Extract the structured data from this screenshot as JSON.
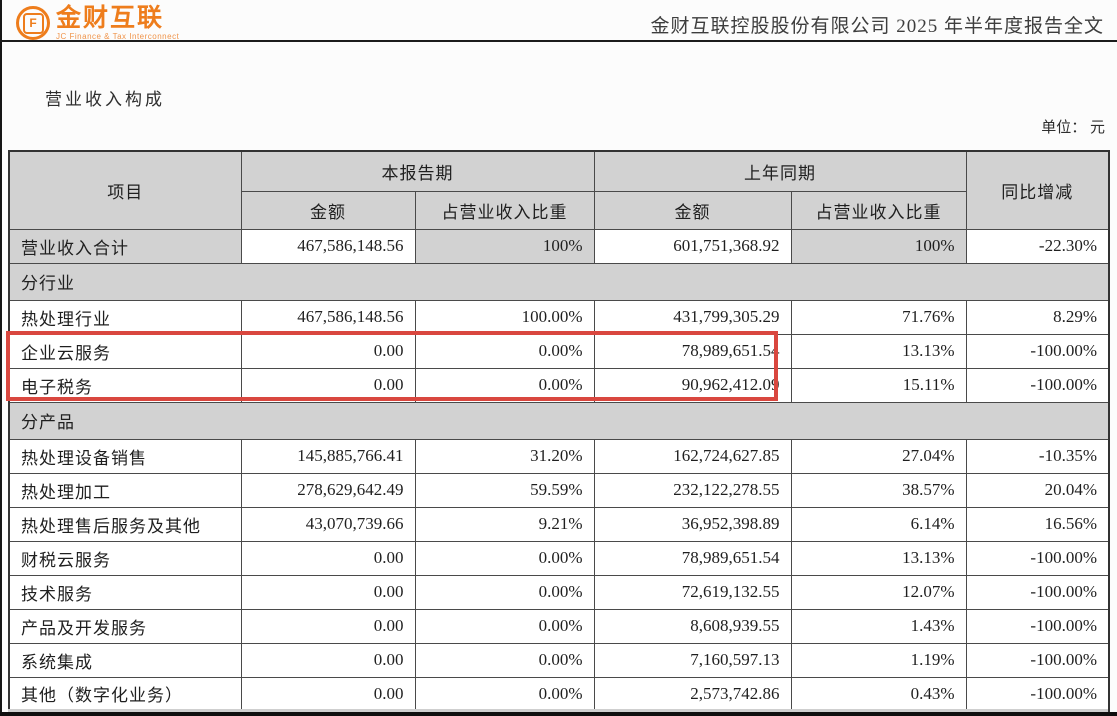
{
  "brand": {
    "name": "金财互联",
    "tagline": "JC Finance & Tax Interconnect",
    "icon_letter": "F",
    "color": "#ee7d1c"
  },
  "header": {
    "doc_title": "金财互联控股股份有限公司 2025 年半年度报告全文"
  },
  "section_title": "营业收入构成",
  "unit_label": "单位： 元",
  "colors": {
    "accent_orange": "#ee7d1c",
    "highlight_red": "#d9473f",
    "header_gray": "#d2d2d2"
  },
  "annotation": {
    "highlight_rows": [
      "企业云服务",
      "电子税务"
    ],
    "shape": "red-rectangle"
  },
  "table": {
    "col_headers": {
      "item": "项目",
      "current_period": "本报告期",
      "prior_period": "上年同期",
      "amount": "金额",
      "pct": "占营业收入比重",
      "yoy": "同比增减"
    },
    "rows": [
      {
        "type": "data",
        "cells": [
          "营业收入合计",
          "467,586,148.56",
          "100%",
          "601,751,368.92",
          "100%",
          "-22.30%"
        ],
        "shade": [
          true,
          false,
          true,
          false,
          true,
          false
        ]
      },
      {
        "type": "section",
        "label": "分行业"
      },
      {
        "type": "data",
        "cells": [
          "热处理行业",
          "467,586,148.56",
          "100.00%",
          "431,799,305.29",
          "71.76%",
          "8.29%"
        ]
      },
      {
        "type": "data",
        "cells": [
          "企业云服务",
          "0.00",
          "0.00%",
          "78,989,651.54",
          "13.13%",
          "-100.00%"
        ],
        "highlighted": true
      },
      {
        "type": "data",
        "cells": [
          "电子税务",
          "0.00",
          "0.00%",
          "90,962,412.09",
          "15.11%",
          "-100.00%"
        ],
        "highlighted": true
      },
      {
        "type": "section",
        "label": "分产品"
      },
      {
        "type": "data",
        "cells": [
          "热处理设备销售",
          "145,885,766.41",
          "31.20%",
          "162,724,627.85",
          "27.04%",
          "-10.35%"
        ]
      },
      {
        "type": "data",
        "cells": [
          "热处理加工",
          "278,629,642.49",
          "59.59%",
          "232,122,278.55",
          "38.57%",
          "20.04%"
        ]
      },
      {
        "type": "data",
        "cells": [
          "热处理售后服务及其他",
          "43,070,739.66",
          "9.21%",
          "36,952,398.89",
          "6.14%",
          "16.56%"
        ]
      },
      {
        "type": "data",
        "cells": [
          "财税云服务",
          "0.00",
          "0.00%",
          "78,989,651.54",
          "13.13%",
          "-100.00%"
        ]
      },
      {
        "type": "data",
        "cells": [
          "技术服务",
          "0.00",
          "0.00%",
          "72,619,132.55",
          "12.07%",
          "-100.00%"
        ]
      },
      {
        "type": "data",
        "cells": [
          "产品及开发服务",
          "0.00",
          "0.00%",
          "8,608,939.55",
          "1.43%",
          "-100.00%"
        ]
      },
      {
        "type": "data",
        "cells": [
          "系统集成",
          "0.00",
          "0.00%",
          "7,160,597.13",
          "1.19%",
          "-100.00%"
        ]
      },
      {
        "type": "data",
        "cells": [
          "其他（数字化业务）",
          "0.00",
          "0.00%",
          "2,573,742.86",
          "0.43%",
          "-100.00%"
        ]
      }
    ]
  }
}
